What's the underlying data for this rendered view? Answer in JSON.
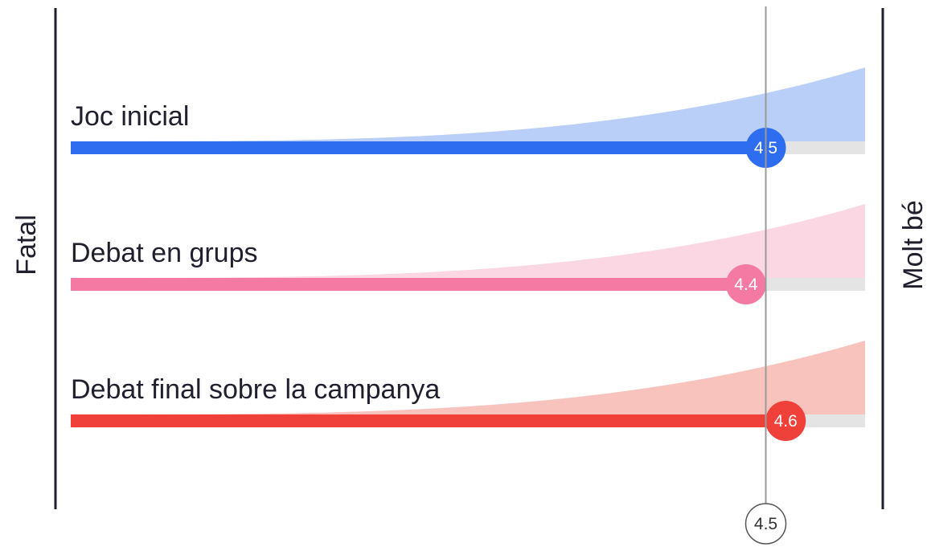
{
  "chart_data": {
    "type": "bar",
    "scale_min_label": "Fatal",
    "scale_max_label": "Molt bé",
    "x_domain": [
      1,
      5
    ],
    "average": {
      "value": 4.5,
      "label": "4.5"
    },
    "series": [
      {
        "name": "Joc inicial",
        "value": 4.5,
        "label": "4.5",
        "color": "#2f6df0",
        "fill": "#b9cff8"
      },
      {
        "name": "Debat en grups",
        "value": 4.4,
        "label": "4.4",
        "color": "#f47aa3",
        "fill": "#fbd7e3"
      },
      {
        "name": "Debat final sobre la campanya",
        "value": 4.6,
        "label": "4.6",
        "color": "#f0403a",
        "fill": "#f9c3bd"
      }
    ]
  }
}
